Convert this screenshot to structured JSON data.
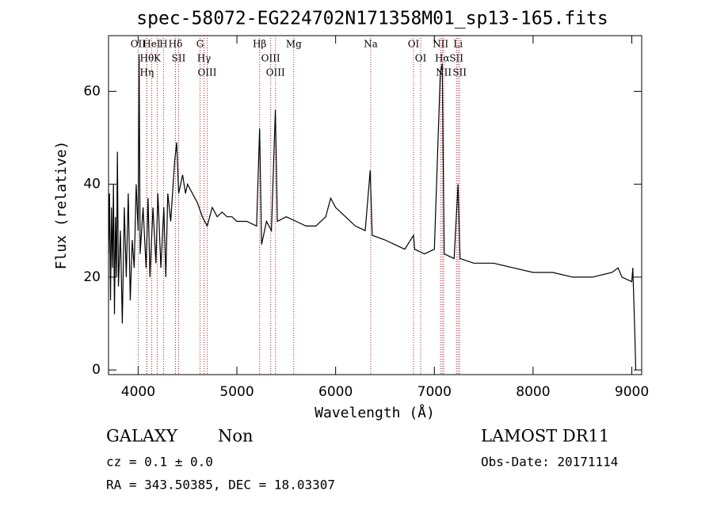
{
  "chart_data": {
    "type": "line",
    "title": "spec-58072-EG224702N171358M01_sp13-165.fits",
    "x_label": "Wavelength (Å)",
    "y_label": "Flux (relative)",
    "xlim": [
      3700,
      9100
    ],
    "ylim": [
      -1,
      72
    ],
    "xticks": [
      4000,
      5000,
      6000,
      7000,
      8000,
      9000
    ],
    "yticks": [
      0,
      20,
      40,
      60
    ],
    "series": [
      {
        "color": "#000000",
        "x": [
          3700,
          3710,
          3720,
          3730,
          3740,
          3750,
          3760,
          3770,
          3780,
          3790,
          3800,
          3820,
          3840,
          3860,
          3880,
          3900,
          3920,
          3940,
          3960,
          3980,
          4000,
          4010,
          4020,
          4050,
          4080,
          4100,
          4120,
          4150,
          4180,
          4200,
          4230,
          4260,
          4280,
          4300,
          4330,
          4370,
          4390,
          4410,
          4450,
          4480,
          4500,
          4550,
          4600,
          4650,
          4700,
          4750,
          4800,
          4850,
          4900,
          4950,
          5000,
          5100,
          5200,
          5230,
          5250,
          5300,
          5350,
          5390,
          5410,
          5500,
          5600,
          5700,
          5800,
          5900,
          5950,
          6000,
          6100,
          6200,
          6300,
          6350,
          6370,
          6500,
          6600,
          6700,
          6789,
          6800,
          6900,
          7000,
          7060,
          7080,
          7100,
          7200,
          7240,
          7260,
          7400,
          7600,
          7800,
          8000,
          8200,
          8400,
          8600,
          8800,
          8860,
          8900,
          9000,
          9010,
          9030,
          9040
        ],
        "values": [
          25,
          38,
          15,
          35,
          22,
          40,
          12,
          33,
          20,
          47,
          18,
          30,
          10,
          35,
          20,
          38,
          15,
          28,
          22,
          40,
          30,
          68,
          25,
          35,
          22,
          37,
          20,
          35,
          23,
          38,
          22,
          35,
          20,
          38,
          32,
          45,
          49,
          38,
          42,
          38,
          40,
          38,
          36,
          33,
          31,
          35,
          33,
          34,
          33,
          33,
          32,
          32,
          31,
          52,
          27,
          32,
          30,
          56,
          32,
          33,
          32,
          31,
          31,
          33,
          37,
          35,
          33,
          31,
          30,
          43,
          29,
          28,
          27,
          26,
          29,
          26,
          25,
          26,
          64,
          66,
          25,
          24,
          40,
          24,
          23,
          23,
          22,
          21,
          21,
          20,
          20,
          21,
          22,
          20,
          19,
          22,
          8,
          0
        ]
      }
    ],
    "lines": {
      "color": "#b22222",
      "items": [
        {
          "wavelength": 4000,
          "label": "OII"
        },
        {
          "wavelength": 4088,
          "label": "Hθ"
        },
        {
          "wavelength": 4088,
          "label": "Hη"
        },
        {
          "wavelength": 4137,
          "label": "HeI"
        },
        {
          "wavelength": 4193,
          "label": "K"
        },
        {
          "wavelength": 4257,
          "label": "H"
        },
        {
          "wavelength": 4378,
          "label": "Hδ"
        },
        {
          "wavelength": 4410,
          "label": "SII"
        },
        {
          "wavelength": 4627,
          "label": "G"
        },
        {
          "wavelength": 4667,
          "label": "Hγ"
        },
        {
          "wavelength": 4699,
          "label": "OIII"
        },
        {
          "wavelength": 5230,
          "label": "Hβ"
        },
        {
          "wavelength": 5342,
          "label": "OIII"
        },
        {
          "wavelength": 5391,
          "label": "OIII"
        },
        {
          "wavelength": 5576,
          "label": "Mg"
        },
        {
          "wavelength": 6355,
          "label": "Na"
        },
        {
          "wavelength": 6789,
          "label": "OI"
        },
        {
          "wavelength": 6862,
          "label": "OI"
        },
        {
          "wavelength": 7063,
          "label": "NII"
        },
        {
          "wavelength": 7080,
          "label": "Hα"
        },
        {
          "wavelength": 7095,
          "label": "NII"
        },
        {
          "wavelength": 7224,
          "label": "SII"
        },
        {
          "wavelength": 7240,
          "label": "Li"
        },
        {
          "wavelength": 7256,
          "label": "SII"
        }
      ]
    },
    "annotations": [
      "GALAXY",
      "Non",
      "cz = 0.1 ± 0.0",
      "RA = 343.50385, DEC =  18.03307",
      "LAMOST DR11",
      "Obs-Date: 20171114"
    ]
  }
}
